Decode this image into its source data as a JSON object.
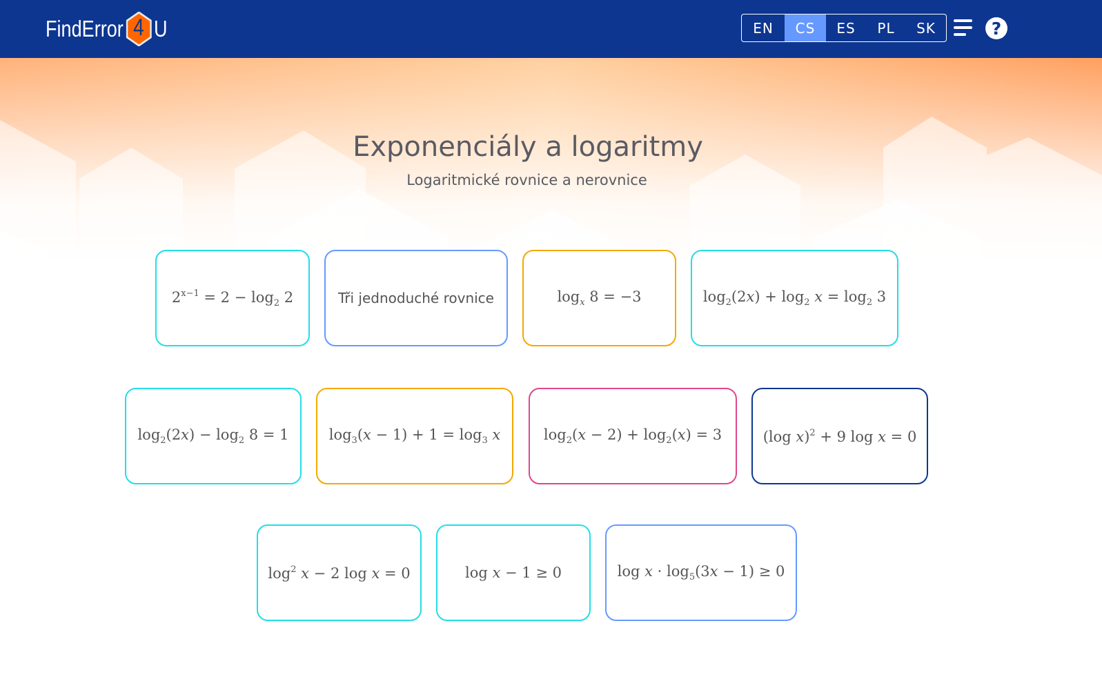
{
  "header": {
    "logo_text": "FindError4U",
    "logo_left": "FindError",
    "logo_digit": "4",
    "logo_right": "U",
    "languages": [
      {
        "label": "EN",
        "active": false
      },
      {
        "label": "CS",
        "active": true
      },
      {
        "label": "ES",
        "active": false
      },
      {
        "label": "PL",
        "active": false
      },
      {
        "label": "SK",
        "active": false
      }
    ],
    "menu_icon": "hamburger-menu-icon",
    "help_icon": "question-circle-icon",
    "help_glyph": "?"
  },
  "colors": {
    "header": "#0d3691",
    "active_lang": "#6699ff",
    "cyan": "#22dde6",
    "blue": "#6699ff",
    "orange": "#f5a800",
    "pink": "#e0448a",
    "navy": "#0d3691",
    "logo_hex": "#ff6600"
  },
  "page": {
    "title": "Exponenciály a logaritmy",
    "subtitle": "Logaritmické rovnice a nerovnice"
  },
  "cards": [
    {
      "color": "cyan",
      "segments": [
        [
          "2",
          ""
        ],
        [
          "x−1",
          "sup"
        ],
        [
          " = 2 − log",
          ""
        ],
        [
          "2",
          "sub"
        ],
        [
          " 2",
          ""
        ]
      ]
    },
    {
      "color": "blue",
      "plain": true,
      "segments": [
        [
          "Tři jednoduché rovnice",
          ""
        ]
      ]
    },
    {
      "color": "orange",
      "segments": [
        [
          "log",
          ""
        ],
        [
          "x",
          "subi"
        ],
        [
          " 8 = −3",
          ""
        ]
      ]
    },
    {
      "color": "cyan",
      "segments": [
        [
          "log",
          ""
        ],
        [
          "2",
          "sub"
        ],
        [
          "(2",
          ""
        ],
        [
          "x",
          "i"
        ],
        [
          ") + log",
          ""
        ],
        [
          "2",
          "sub"
        ],
        [
          " ",
          ""
        ],
        [
          "x",
          "i"
        ],
        [
          " = log",
          ""
        ],
        [
          "2",
          "sub"
        ],
        [
          " 3",
          ""
        ]
      ]
    },
    {
      "color": "cyan",
      "segments": [
        [
          "log",
          ""
        ],
        [
          "2",
          "sub"
        ],
        [
          "(2",
          ""
        ],
        [
          "x",
          "i"
        ],
        [
          ") − log",
          ""
        ],
        [
          "2",
          "sub"
        ],
        [
          " 8 = 1",
          ""
        ]
      ]
    },
    {
      "color": "orange",
      "segments": [
        [
          "log",
          ""
        ],
        [
          "3",
          "sub"
        ],
        [
          "(",
          ""
        ],
        [
          "x",
          "i"
        ],
        [
          " − 1) + 1 = log",
          ""
        ],
        [
          "3",
          "sub"
        ],
        [
          " ",
          ""
        ],
        [
          "x",
          "i"
        ]
      ]
    },
    {
      "color": "pink",
      "segments": [
        [
          "log",
          ""
        ],
        [
          "2",
          "sub"
        ],
        [
          "(",
          ""
        ],
        [
          "x",
          "i"
        ],
        [
          " − 2) + log",
          ""
        ],
        [
          "2",
          "sub"
        ],
        [
          "(",
          ""
        ],
        [
          "x",
          "i"
        ],
        [
          ") = 3",
          ""
        ]
      ]
    },
    {
      "color": "navy",
      "segments": [
        [
          "(log ",
          ""
        ],
        [
          "x",
          "i"
        ],
        [
          ")",
          ""
        ],
        [
          "2",
          "sup"
        ],
        [
          " + 9 log ",
          ""
        ],
        [
          "x",
          "i"
        ],
        [
          " = 0",
          ""
        ]
      ]
    },
    {
      "color": "cyan",
      "segments": [
        [
          "log",
          ""
        ],
        [
          "2",
          "sup"
        ],
        [
          " ",
          ""
        ],
        [
          "x",
          "i"
        ],
        [
          " − 2 log ",
          ""
        ],
        [
          "x",
          "i"
        ],
        [
          " = 0",
          ""
        ]
      ]
    },
    {
      "color": "cyan",
      "segments": [
        [
          "log ",
          ""
        ],
        [
          "x",
          "i"
        ],
        [
          " − 1 ≥ 0",
          ""
        ]
      ]
    },
    {
      "color": "blue",
      "segments": [
        [
          "log ",
          ""
        ],
        [
          "x",
          "i"
        ],
        [
          " · log",
          ""
        ],
        [
          "5",
          "sub"
        ],
        [
          "(3",
          ""
        ],
        [
          "x",
          "i"
        ],
        [
          " − 1) ≥ 0",
          ""
        ]
      ]
    }
  ]
}
